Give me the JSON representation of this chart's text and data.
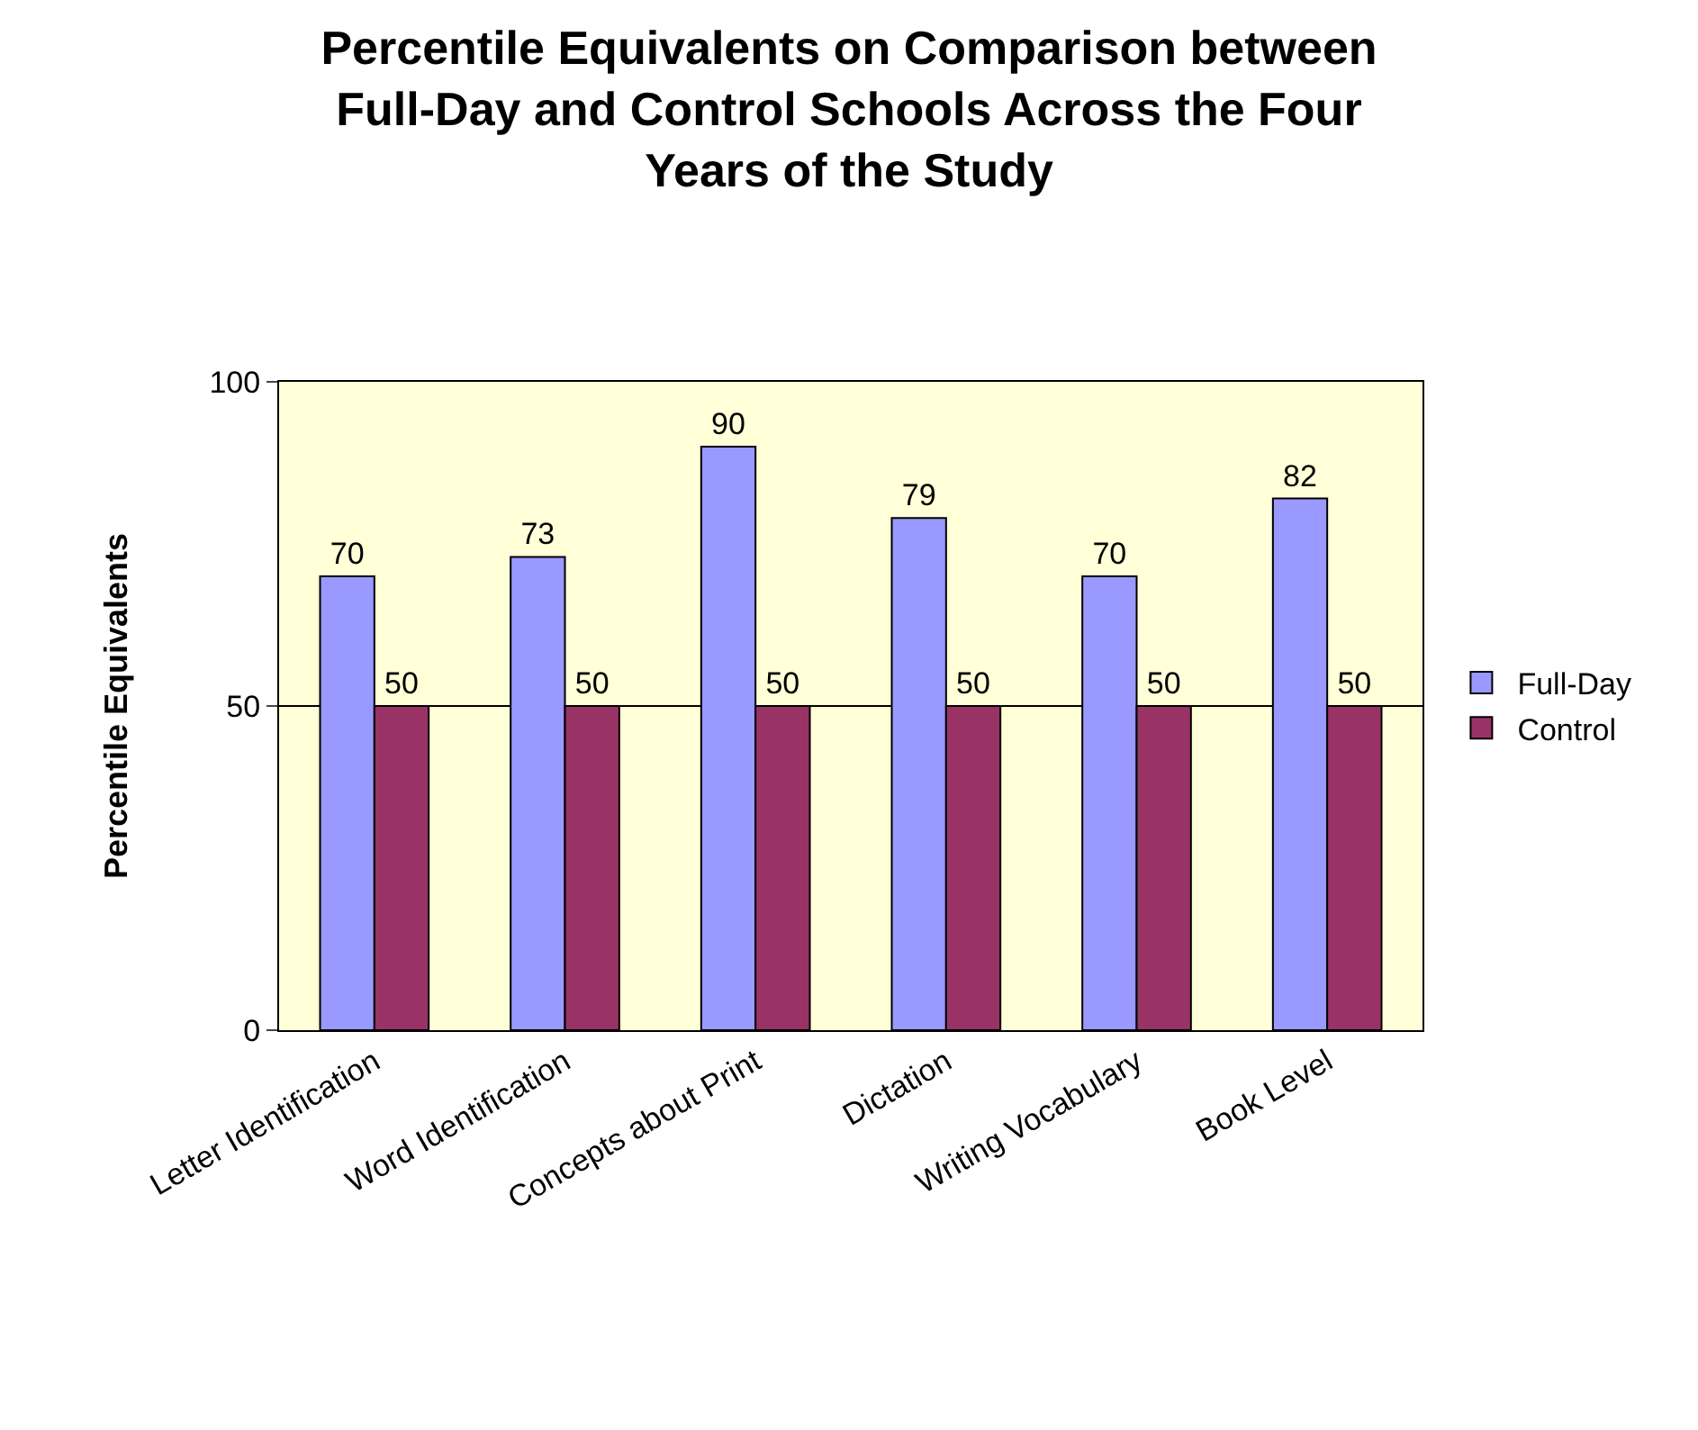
{
  "chart_data": {
    "type": "bar",
    "title": "Percentile Equivalents on Comparison between Full-Day and Control Schools Across the Four Years of the Study",
    "ylabel": "Percentile Equivalents",
    "categories": [
      "Letter Identification",
      "Word Identification",
      "Concepts about Print",
      "Dictation",
      "Writing Vocabulary",
      "Book Level"
    ],
    "series": [
      {
        "name": "Full-Day",
        "color": "#9999ff",
        "values": [
          70,
          73,
          90,
          79,
          70,
          82
        ]
      },
      {
        "name": "Control",
        "color": "#993366",
        "values": [
          50,
          50,
          50,
          50,
          50,
          50
        ]
      }
    ],
    "ylim": [
      0,
      100
    ],
    "yticks": [
      0,
      50,
      100
    ],
    "grid": "y",
    "legend": "right",
    "data_labels": true
  }
}
